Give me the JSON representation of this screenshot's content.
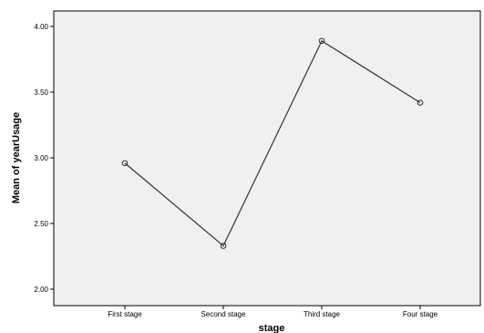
{
  "chart_data": {
    "type": "line",
    "categories": [
      "First stage",
      "Second stage",
      "Third stage",
      "Four stage"
    ],
    "series": [
      {
        "values": [
          2.96,
          2.33,
          3.89,
          3.42
        ]
      }
    ],
    "xlabel": "stage",
    "ylabel": "Mean of yearUsage",
    "ylim": [
      1.9,
      4.1
    ],
    "yticks": [
      "2.00",
      "2.50",
      "3.00",
      "3.50",
      "4.00"
    ],
    "grid": false,
    "legend": "none",
    "colors": {
      "plot_background": "#f0f0f0",
      "line": "#333333",
      "axis": "#000000"
    }
  }
}
